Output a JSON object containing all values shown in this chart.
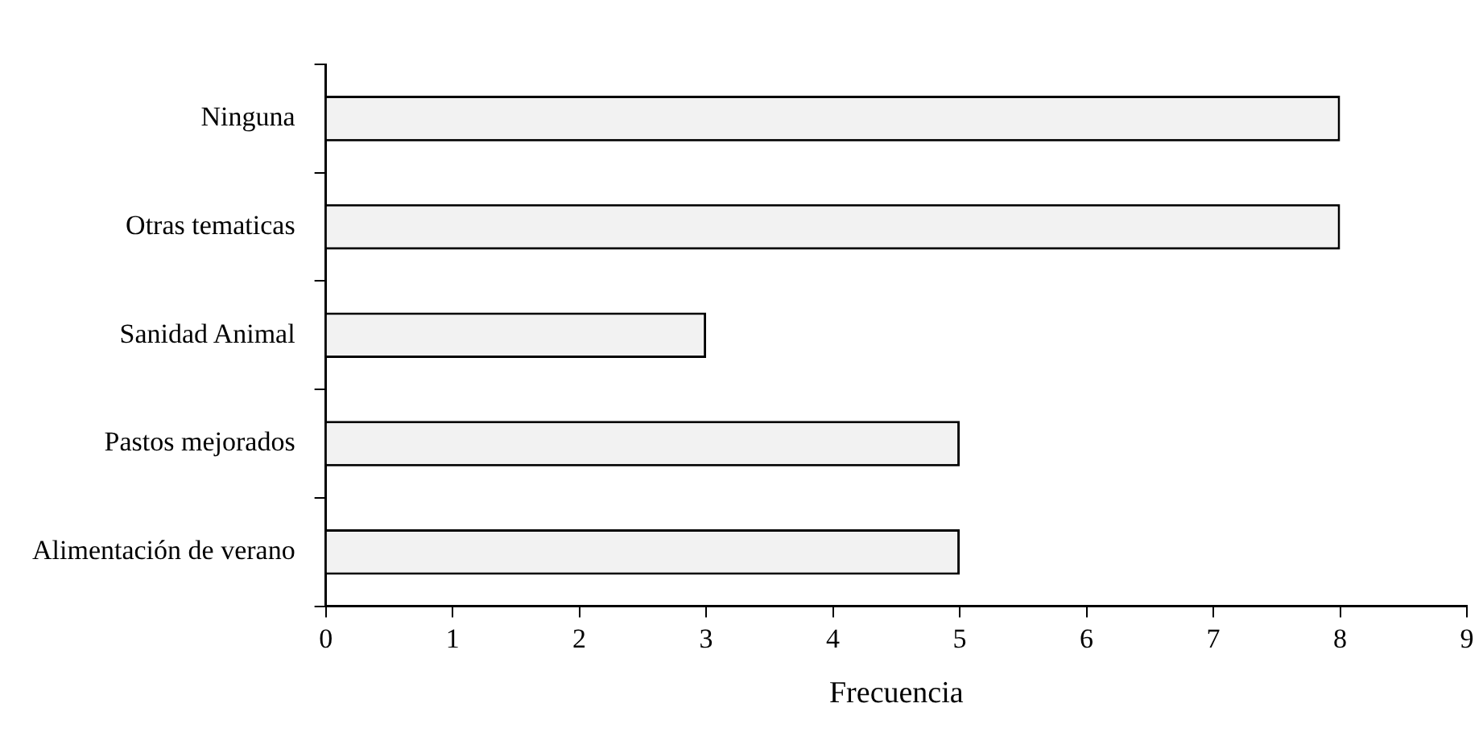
{
  "chart_data": {
    "type": "bar",
    "orientation": "horizontal",
    "xlabel": "Frecuencia",
    "categories": [
      "Ninguna",
      "Otras tematicas",
      "Sanidad Animal",
      "Pastos mejorados",
      "Alimentación de verano"
    ],
    "values": [
      8,
      8,
      3,
      5,
      5
    ],
    "color": "#f2f2f2",
    "xlim": [
      0,
      9
    ],
    "xticks": [
      0,
      1,
      2,
      3,
      4,
      5,
      6,
      7,
      8,
      9
    ],
    "grid": false,
    "legend": false
  }
}
